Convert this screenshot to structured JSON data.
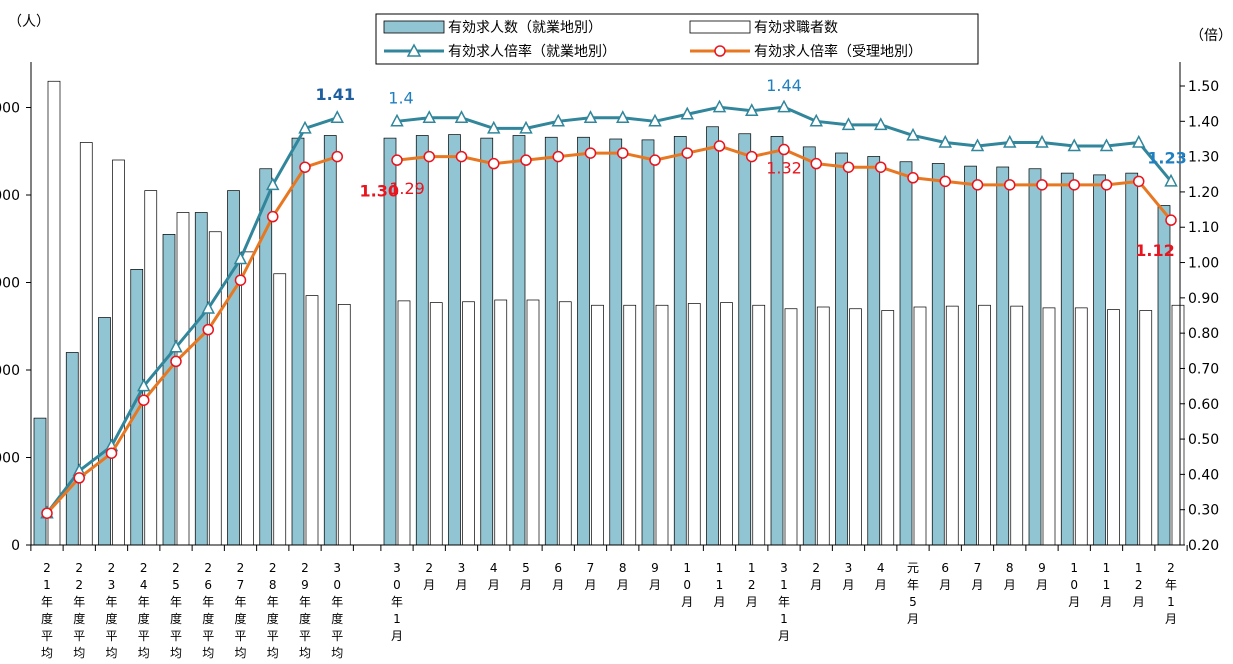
{
  "chart_data": {
    "type": "bar",
    "title": "",
    "left_unit": "（人）",
    "right_unit": "（倍）",
    "left_axis": {
      "min": 0,
      "max": 60000,
      "ticks": [
        0,
        10000,
        20000,
        30000,
        40000,
        50000
      ],
      "tick_labels": [
        "0",
        "000",
        "000",
        "000",
        "000",
        "000"
      ]
    },
    "right_axis": {
      "min": 0.2,
      "max": 1.55,
      "ticks": [
        0.2,
        0.3,
        0.4,
        0.5,
        0.6,
        0.7,
        0.8,
        0.9,
        1.0,
        1.1,
        1.2,
        1.3,
        1.4,
        1.5
      ],
      "tick_labels": [
        "0.20",
        "0.30",
        "0.40",
        "0.50",
        "0.60",
        "0.70",
        "0.80",
        "0.90",
        "1.00",
        "1.10",
        "1.20",
        "1.30",
        "1.40",
        "1.50"
      ]
    },
    "categories": [
      "21年度平均",
      "22年度平均",
      "23年度平均",
      "24年度平均",
      "25年度平均",
      "26年度平均",
      "27年度平均",
      "28年度平均",
      "29年度平均",
      "30年度平均",
      "30年1月",
      "2月",
      "3月",
      "4月",
      "5月",
      "6月",
      "7月",
      "8月",
      "9月",
      "10月",
      "11月",
      "12月",
      "31年1月",
      "2月",
      "3月",
      "4月",
      "元年5月",
      "6月",
      "7月",
      "8月",
      "9月",
      "10月",
      "11月",
      "12月",
      "2年1月"
    ],
    "category_labels": [
      [
        "2",
        "1",
        "年",
        "度",
        "平",
        "均"
      ],
      [
        "2",
        "2",
        "年",
        "度",
        "平",
        "均"
      ],
      [
        "2",
        "3",
        "年",
        "度",
        "平",
        "均"
      ],
      [
        "2",
        "4",
        "年",
        "度",
        "平",
        "均"
      ],
      [
        "2",
        "5",
        "年",
        "度",
        "平",
        "均"
      ],
      [
        "2",
        "6",
        "年",
        "度",
        "平",
        "均"
      ],
      [
        "2",
        "7",
        "年",
        "度",
        "平",
        "均"
      ],
      [
        "2",
        "8",
        "年",
        "度",
        "平",
        "均"
      ],
      [
        "2",
        "9",
        "年",
        "度",
        "平",
        "均"
      ],
      [
        "3",
        "0",
        "年",
        "度",
        "平",
        "均"
      ],
      [
        "3",
        "0",
        "年",
        "1",
        "月"
      ],
      [
        "2",
        "月"
      ],
      [
        "3",
        "月"
      ],
      [
        "4",
        "月"
      ],
      [
        "5",
        "月"
      ],
      [
        "6",
        "月"
      ],
      [
        "7",
        "月"
      ],
      [
        "8",
        "月"
      ],
      [
        "9",
        "月"
      ],
      [
        "1",
        "0",
        "月"
      ],
      [
        "1",
        "1",
        "月"
      ],
      [
        "1",
        "2",
        "月"
      ],
      [
        "3",
        "1",
        "年",
        "1",
        "月"
      ],
      [
        "2",
        "月"
      ],
      [
        "3",
        "月"
      ],
      [
        "4",
        "月"
      ],
      [
        "元",
        "年",
        "5",
        "月"
      ],
      [
        "6",
        "月"
      ],
      [
        "7",
        "月"
      ],
      [
        "8",
        "月"
      ],
      [
        "9",
        "月"
      ],
      [
        "1",
        "0",
        "月"
      ],
      [
        "1",
        "1",
        "月"
      ],
      [
        "1",
        "2",
        "月"
      ],
      [
        "2",
        "年",
        "1",
        "月"
      ]
    ],
    "series": [
      {
        "name": "有効求人数（就業地別）",
        "kind": "bar",
        "axis": "left",
        "color": "#92C5D3",
        "values": [
          14500,
          22000,
          26000,
          31500,
          35500,
          38000,
          40500,
          43000,
          46500,
          46800,
          46500,
          46800,
          46900,
          46500,
          46800,
          46600,
          46600,
          46400,
          46300,
          46700,
          47800,
          47000,
          46700,
          45500,
          44800,
          44400,
          43800,
          43600,
          43300,
          43200,
          43000,
          42500,
          42300,
          42500,
          38800
        ]
      },
      {
        "name": "有効求職者数",
        "kind": "bar",
        "axis": "left",
        "color": "#ffffff",
        "values": [
          53000,
          46000,
          44000,
          40500,
          38000,
          35800,
          33500,
          31000,
          28500,
          27500,
          27900,
          27700,
          27800,
          28000,
          28000,
          27800,
          27400,
          27400,
          27400,
          27600,
          27700,
          27400,
          27000,
          27200,
          27000,
          26800,
          27200,
          27300,
          27400,
          27300,
          27100,
          27100,
          26900,
          26800,
          27400
        ]
      },
      {
        "name": "有効求人倍率（就業地別）",
        "kind": "line",
        "axis": "right",
        "color": "#31869B",
        "marker": "triangle",
        "values": [
          0.29,
          0.41,
          0.48,
          0.65,
          0.76,
          0.87,
          1.01,
          1.22,
          1.38,
          1.41,
          1.4,
          1.41,
          1.41,
          1.38,
          1.38,
          1.4,
          1.41,
          1.41,
          1.4,
          1.42,
          1.44,
          1.43,
          1.44,
          1.4,
          1.39,
          1.39,
          1.36,
          1.34,
          1.33,
          1.34,
          1.34,
          1.33,
          1.33,
          1.34,
          1.23
        ]
      },
      {
        "name": "有効求人倍率（受理地別）",
        "kind": "line",
        "axis": "right",
        "color": "#E87722",
        "marker": "circle",
        "values": [
          0.29,
          0.39,
          0.46,
          0.61,
          0.72,
          0.81,
          0.95,
          1.13,
          1.27,
          1.3,
          1.29,
          1.3,
          1.3,
          1.28,
          1.29,
          1.3,
          1.31,
          1.31,
          1.29,
          1.31,
          1.33,
          1.3,
          1.32,
          1.28,
          1.27,
          1.27,
          1.24,
          1.23,
          1.22,
          1.22,
          1.22,
          1.22,
          1.22,
          1.23,
          1.12
        ]
      }
    ],
    "annotations": [
      {
        "text": "1.41",
        "series": 2,
        "index": 9,
        "color": "#1F5FA0",
        "bold": true
      },
      {
        "text": "1.30",
        "series": 3,
        "index": 9,
        "color": "#E8141E",
        "bold": true
      },
      {
        "text": "1.4",
        "series": 2,
        "index": 10,
        "color": "#1F7FC0",
        "bold": false
      },
      {
        "text": "1.29",
        "series": 3,
        "index": 10,
        "color": "#E8141E",
        "bold": false
      },
      {
        "text": "1.44",
        "series": 2,
        "index": 22,
        "color": "#1F7FC0",
        "bold": false
      },
      {
        "text": "1.32",
        "series": 3,
        "index": 22,
        "color": "#E8141E",
        "bold": false
      },
      {
        "text": "1.23",
        "series": 2,
        "index": 34,
        "color": "#1F7FC0",
        "bold": true
      },
      {
        "text": "1.12",
        "series": 3,
        "index": 34,
        "color": "#E8141E",
        "bold": true
      }
    ],
    "legend": {
      "position": "top-center"
    },
    "grid": false
  }
}
